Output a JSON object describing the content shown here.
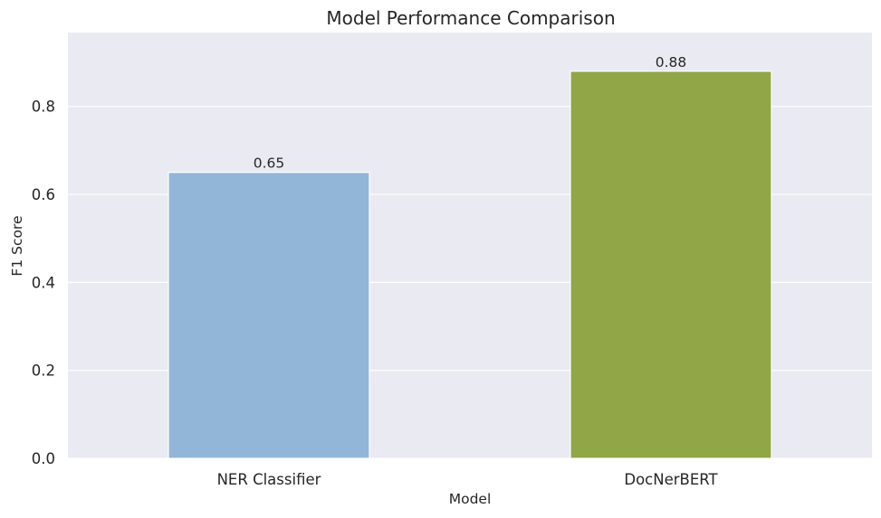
{
  "chart_data": {
    "type": "bar",
    "title": "Model Performance Comparison",
    "xlabel": "Model",
    "ylabel": "F1 Score",
    "categories": [
      "NER Classifier",
      "DocNerBERT"
    ],
    "values": [
      0.65,
      0.88
    ],
    "data_labels": [
      "0.65",
      "0.88"
    ],
    "ylim": [
      0,
      0.968
    ],
    "yticks": [
      0.0,
      0.2,
      0.4,
      0.6,
      0.8
    ],
    "ytick_labels": [
      "0.0",
      "0.2",
      "0.4",
      "0.6",
      "0.8"
    ],
    "bar_colors": [
      "#92b6d7",
      "#90a647"
    ],
    "background_color": "#eaeaf2",
    "grid": true,
    "legend": "none"
  }
}
